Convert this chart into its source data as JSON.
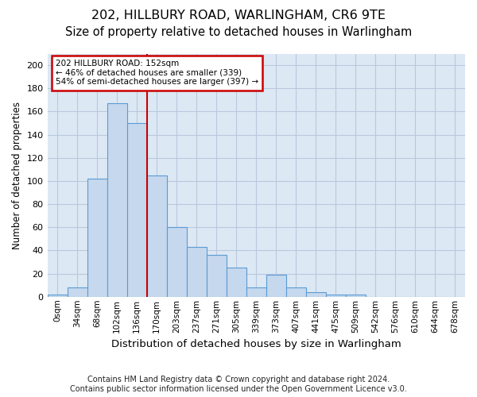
{
  "title1": "202, HILLBURY ROAD, WARLINGHAM, CR6 9TE",
  "title2": "Size of property relative to detached houses in Warlingham",
  "xlabel": "Distribution of detached houses by size in Warlingham",
  "ylabel": "Number of detached properties",
  "footer1": "Contains HM Land Registry data © Crown copyright and database right 2024.",
  "footer2": "Contains public sector information licensed under the Open Government Licence v3.0.",
  "bar_values": [
    2,
    8,
    102,
    167,
    150,
    105,
    60,
    43,
    36,
    25,
    8,
    19,
    8,
    4,
    2,
    2,
    0,
    0,
    0,
    0,
    0
  ],
  "bar_labels": [
    "0sqm",
    "34sqm",
    "68sqm",
    "102sqm",
    "136sqm",
    "170sqm",
    "203sqm",
    "237sqm",
    "271sqm",
    "305sqm",
    "339sqm",
    "373sqm",
    "407sqm",
    "441sqm",
    "475sqm",
    "509sqm",
    "542sqm",
    "576sqm",
    "610sqm",
    "644sqm",
    "678sqm"
  ],
  "bar_color": "#c5d8ed",
  "bar_edge_color": "#5b9bd5",
  "grid_color": "#b8c8dc",
  "bg_color": "#dce8f4",
  "annotation_line1": "202 HILLBURY ROAD: 152sqm",
  "annotation_line2": "← 46% of detached houses are smaller (339)",
  "annotation_line3": "54% of semi-detached houses are larger (397) →",
  "annotation_box_color": "#ffffff",
  "annotation_border_color": "#cc0000",
  "vline_color": "#cc0000",
  "vline_x": 4.52,
  "ylim_max": 210,
  "yticks": [
    0,
    20,
    40,
    60,
    80,
    100,
    120,
    140,
    160,
    180,
    200
  ],
  "title1_fontsize": 11.5,
  "title2_fontsize": 10.5,
  "xlabel_fontsize": 9.5,
  "ylabel_fontsize": 8.5,
  "tick_fontsize": 7.5,
  "annotation_fontsize": 7.5,
  "footer_fontsize": 7.0
}
